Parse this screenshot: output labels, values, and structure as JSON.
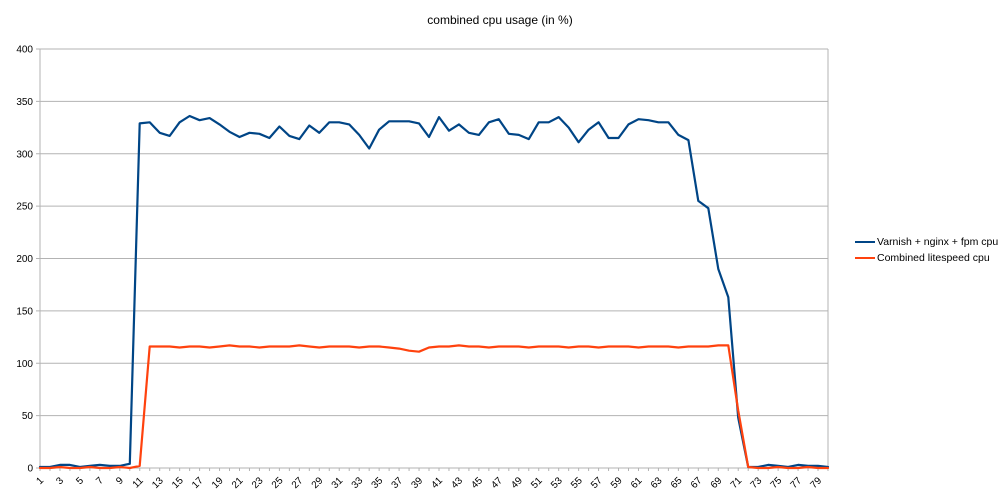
{
  "title": "combined cpu usage (in %)",
  "colors": {
    "series1": "#004586",
    "series2": "#FF420E",
    "grid": "#b3b3b3",
    "axis": "#b3b3b3",
    "text": "#000000",
    "background": "#ffffff"
  },
  "legend": {
    "position": "right",
    "items": [
      {
        "label": "Varnish + nginx + fpm cpu",
        "color": "#004586"
      },
      {
        "label": "Combined litespeed cpu",
        "color": "#FF420E"
      }
    ]
  },
  "chart_data": {
    "type": "line",
    "title": "combined cpu usage (in %)",
    "xlabel": "",
    "ylabel": "",
    "ylim": [
      0,
      400
    ],
    "yticks": [
      0,
      50,
      100,
      150,
      200,
      250,
      300,
      350,
      400
    ],
    "grid": true,
    "legend_position": "right",
    "x_count": 80,
    "x_start": 1,
    "x_step": 1,
    "x_tick_labels": [
      "1",
      "3",
      "5",
      "7",
      "9",
      "11",
      "13",
      "15",
      "17",
      "19",
      "21",
      "23",
      "25",
      "27",
      "29",
      "31",
      "33",
      "35",
      "37",
      "39",
      "41",
      "43",
      "45",
      "47",
      "49",
      "51",
      "53",
      "55",
      "57",
      "59",
      "61",
      "63",
      "65",
      "67",
      "69",
      "71",
      "73",
      "75",
      "77",
      "79"
    ],
    "series": [
      {
        "name": "Varnish + nginx + fpm cpu",
        "color": "#004586",
        "values": [
          1,
          1,
          3,
          3,
          1,
          2,
          3,
          2,
          2,
          4,
          329,
          330,
          320,
          317,
          330,
          336,
          332,
          334,
          328,
          321,
          316,
          320,
          319,
          315,
          326,
          317,
          314,
          327,
          320,
          330,
          330,
          328,
          318,
          305,
          323,
          331,
          331,
          331,
          329,
          316,
          335,
          322,
          328,
          320,
          318,
          330,
          333,
          319,
          318,
          314,
          330,
          330,
          335,
          325,
          311,
          323,
          330,
          315,
          315,
          328,
          333,
          332,
          330,
          330,
          318,
          313,
          255,
          248,
          190,
          163,
          48,
          1,
          1,
          3,
          2,
          1,
          3,
          2,
          2,
          1
        ]
      },
      {
        "name": "Combined litespeed cpu",
        "color": "#FF420E",
        "values": [
          0,
          0,
          1,
          0,
          0,
          1,
          0,
          0,
          1,
          0,
          2,
          116,
          116,
          116,
          115,
          116,
          116,
          115,
          116,
          117,
          116,
          116,
          115,
          116,
          116,
          116,
          117,
          116,
          115,
          116,
          116,
          116,
          115,
          116,
          116,
          115,
          114,
          112,
          111,
          115,
          116,
          116,
          117,
          116,
          116,
          115,
          116,
          116,
          116,
          115,
          116,
          116,
          116,
          115,
          116,
          116,
          115,
          116,
          116,
          116,
          115,
          116,
          116,
          116,
          115,
          116,
          116,
          116,
          117,
          117,
          55,
          1,
          0,
          0,
          1,
          0,
          0,
          1,
          0,
          0
        ]
      }
    ]
  }
}
